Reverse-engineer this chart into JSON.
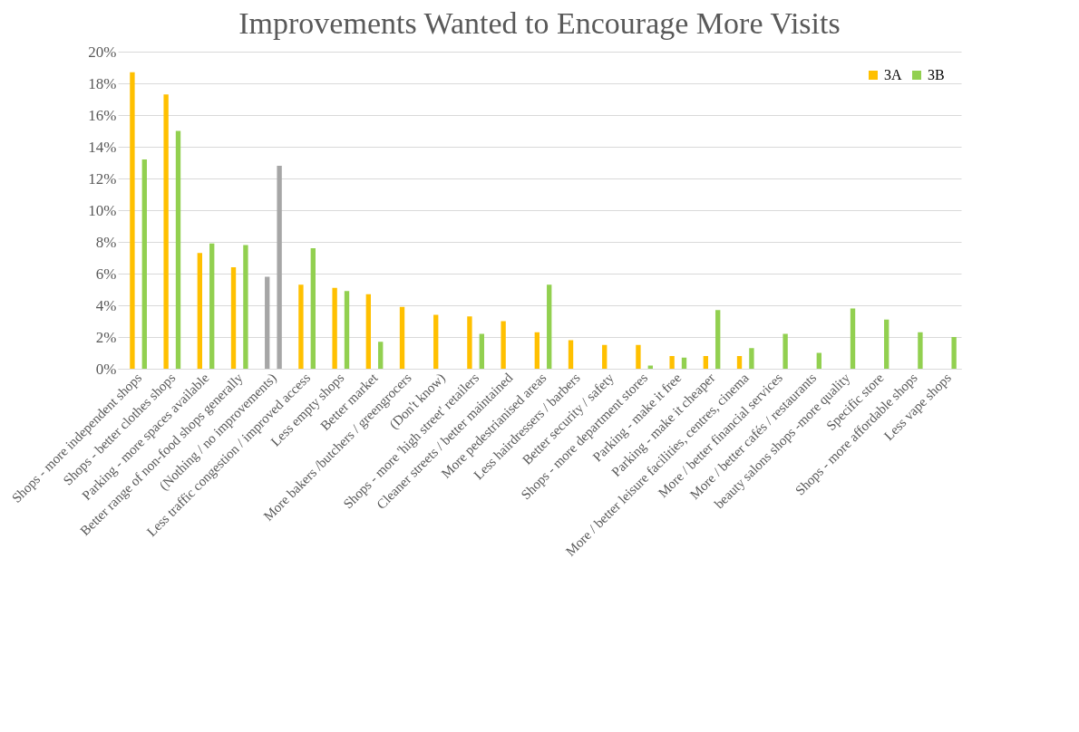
{
  "chart_data": {
    "type": "bar",
    "title": "Improvements Wanted to Encourage More Visits",
    "categories": [
      "Shops - more independent shops",
      "Shops - better clothes shops",
      "Parking - more spaces available",
      "Better range of non-food shops generally",
      "(Nothing / no improvements)",
      "Less traffic congestion / improved access",
      "Less empty shops",
      "Better market",
      "More bakers /butchers / greengrocers",
      "(Don't know)",
      "Shops - more 'high street' retailers",
      "Cleaner streets / better maintained",
      "More pedestrianised areas",
      "Less hairdressers / barbers",
      "Better security / safety",
      "Shops - more department stores",
      "Parking - make it free",
      "Parking - make it cheaper",
      "More / better leisure facilities, centres, cinema",
      "More / better financial services",
      "More / better cafés / restaurants",
      "beauty salons shops -more quality",
      "Specific store",
      "Shops - more affordable shops",
      "Less vape shops"
    ],
    "series": [
      {
        "name": "3A",
        "color": "#ffc000",
        "colors": [
          "#ffc000",
          "#ffc000",
          "#ffc000",
          "#ffc000",
          "#a6a6a6",
          "#ffc000",
          "#ffc000",
          "#ffc000",
          "#ffc000",
          "#ffc000",
          "#ffc000",
          "#ffc000",
          "#ffc000",
          "#ffc000",
          "#ffc000",
          "#ffc000",
          "#ffc000",
          "#ffc000",
          "#ffc000",
          null,
          null,
          null,
          null,
          null,
          null
        ],
        "values": [
          18.7,
          17.3,
          7.3,
          6.4,
          5.8,
          5.3,
          5.1,
          4.7,
          3.9,
          3.4,
          3.3,
          3.0,
          2.3,
          1.8,
          1.5,
          1.5,
          0.8,
          0.8,
          0.8,
          null,
          null,
          null,
          null,
          null,
          null
        ]
      },
      {
        "name": "3B",
        "color": "#92d050",
        "colors": [
          "#92d050",
          "#92d050",
          "#92d050",
          "#92d050",
          "#a6a6a6",
          "#92d050",
          "#92d050",
          "#92d050",
          null,
          null,
          "#92d050",
          null,
          "#92d050",
          null,
          null,
          "#92d050",
          "#92d050",
          "#92d050",
          "#92d050",
          "#92d050",
          "#92d050",
          "#92d050",
          "#92d050",
          "#92d050",
          "#92d050"
        ],
        "values": [
          13.2,
          15.0,
          7.9,
          7.8,
          12.8,
          7.6,
          4.9,
          1.7,
          null,
          null,
          2.2,
          null,
          5.3,
          null,
          null,
          0.2,
          0.7,
          3.7,
          1.3,
          2.2,
          1.0,
          3.8,
          3.1,
          2.3,
          2.0
        ]
      }
    ],
    "ylim": [
      0,
      20
    ],
    "yticks": [
      {
        "value": 0,
        "label": "0%"
      },
      {
        "value": 2,
        "label": "2%"
      },
      {
        "value": 4,
        "label": "4%"
      },
      {
        "value": 6,
        "label": "6%"
      },
      {
        "value": 8,
        "label": "8%"
      },
      {
        "value": 10,
        "label": "10%"
      },
      {
        "value": 12,
        "label": "12%"
      },
      {
        "value": 14,
        "label": "14%"
      },
      {
        "value": 16,
        "label": "16%"
      },
      {
        "value": 18,
        "label": "18%"
      },
      {
        "value": 20,
        "label": "20%"
      }
    ],
    "grid": "y",
    "legend": "top right"
  }
}
